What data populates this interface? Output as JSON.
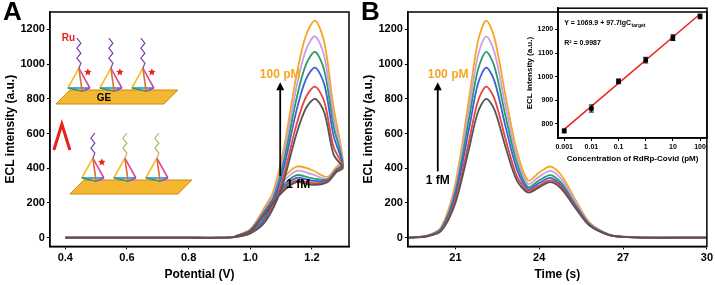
{
  "chart_data": [
    {
      "type": "line",
      "title": "A",
      "x_label": "Potential (V)",
      "y_label": "ECL intensity (a.u.)",
      "grid": false,
      "xlim": [
        0.35,
        1.32
      ],
      "xticks": [
        0.4,
        0.6,
        0.8,
        {
          "value": 1,
          "label": "1.0"
        },
        1.2
      ],
      "ylim": [
        -50,
        1300
      ],
      "yticks": [
        0,
        200,
        400,
        600,
        800,
        1000,
        1200
      ],
      "x": [
        0.4,
        0.6,
        0.8,
        0.9,
        0.95,
        1.0,
        1.05,
        1.1,
        1.15,
        1.18,
        1.21,
        1.24,
        1.27,
        1.3,
        1.28,
        1.25,
        1.2,
        1.15,
        1.1,
        1.05,
        1.0,
        0.95
      ],
      "series": [
        {
          "color": "#555555",
          "values": [
            0,
            0,
            0,
            0,
            4,
            24,
            96,
            280,
            600,
            744,
            800,
            720,
            480,
            400,
            380,
            320,
            304,
            320,
            256,
            144,
            38,
            6
          ]
        },
        {
          "color": "#e8453c",
          "values": [
            0,
            0,
            0,
            0,
            4,
            26,
            104,
            305,
            653,
            809,
            870,
            783,
            522,
            410,
            385,
            325,
            314,
            330,
            264,
            149,
            40,
            7
          ]
        },
        {
          "color": "#3a62d6",
          "values": [
            0,
            0,
            0,
            0,
            5,
            29,
            118,
            343,
            735,
            911,
            980,
            882,
            588,
            415,
            390,
            330,
            328,
            345,
            276,
            155,
            41,
            7
          ]
        },
        {
          "color": "#2f9a6a",
          "values": [
            0,
            0,
            0,
            0,
            5,
            32,
            128,
            375,
            803,
            995,
            1070,
            963,
            642,
            420,
            395,
            335,
            342,
            360,
            288,
            162,
            43,
            7
          ]
        },
        {
          "color": "#c9a0e6",
          "values": [
            0,
            0,
            0,
            0,
            6,
            35,
            139,
            406,
            870,
            1079,
            1160,
            1044,
            696,
            430,
            400,
            340,
            366,
            385,
            308,
            173,
            46,
            8
          ]
        },
        {
          "color": "#f5a623",
          "values": [
            0,
            0,
            0,
            0,
            6,
            38,
            150,
            438,
            938,
            1163,
            1250,
            1125,
            750,
            440,
            410,
            350,
            390,
            410,
            328,
            185,
            49,
            8
          ]
        }
      ],
      "annotations": [
        {
          "text": "100 pM",
          "color": "#f5a623"
        },
        {
          "text": "1 fM",
          "color": "#000000"
        },
        {
          "text": "Ru",
          "color": "#e8201a"
        },
        {
          "text": "GE",
          "color": "#000000"
        }
      ]
    },
    {
      "type": "line",
      "title": "B",
      "x_label": "Time (s)",
      "y_label": "ECL intensity (a.u.)",
      "grid": false,
      "xlim": [
        19.3,
        30
      ],
      "xticks": [
        21,
        24,
        27,
        30
      ],
      "ylim": [
        -50,
        1300
      ],
      "yticks": [
        0,
        200,
        400,
        600,
        800,
        1000,
        1200
      ],
      "x": [
        19.3,
        20,
        20.5,
        21,
        21.5,
        21.8,
        22.1,
        22.4,
        22.8,
        23.2,
        23.6,
        24.0,
        24.4,
        24.8,
        25.3,
        25.8,
        26.5,
        27,
        28,
        29,
        30
      ],
      "series": [
        {
          "color": "#555555",
          "values": [
            0,
            8,
            40,
            200,
            520,
            720,
            800,
            736,
            520,
            330,
            260,
            290,
            320,
            280,
            170,
            70,
            15,
            5,
            0,
            0,
            0
          ]
        },
        {
          "color": "#e8453c",
          "values": [
            0,
            9,
            44,
            218,
            566,
            783,
            870,
            800,
            566,
            355,
            270,
            300,
            330,
            290,
            175,
            72,
            15,
            5,
            0,
            0,
            0
          ]
        },
        {
          "color": "#3a62d6",
          "values": [
            0,
            10,
            49,
            245,
            637,
            882,
            980,
            902,
            637,
            395,
            280,
            315,
            345,
            300,
            183,
            75,
            16,
            5,
            0,
            0,
            0
          ]
        },
        {
          "color": "#2f9a6a",
          "values": [
            0,
            11,
            54,
            268,
            696,
            963,
            1070,
            984,
            696,
            430,
            292,
            330,
            360,
            314,
            190,
            78,
            17,
            5,
            0,
            0,
            0
          ]
        },
        {
          "color": "#c9a0e6",
          "values": [
            0,
            12,
            58,
            290,
            754,
            1044,
            1160,
            1067,
            754,
            465,
            310,
            352,
            385,
            336,
            204,
            84,
            18,
            6,
            0,
            0,
            0
          ]
        },
        {
          "color": "#f5a623",
          "values": [
            0,
            13,
            63,
            313,
            813,
            1125,
            1250,
            1150,
            813,
            500,
            330,
            375,
            410,
            358,
            217,
            89,
            19,
            6,
            0,
            0,
            0
          ]
        }
      ],
      "annotations": [
        {
          "text": "100 pM",
          "color": "#f5a623"
        },
        {
          "text": "1 fM",
          "color": "#000000"
        }
      ]
    },
    {
      "type": "scatter",
      "x_label": "Concentration of RdRp-Covid (pM)",
      "y_label": "ECL intensity (a.u.)",
      "grid": false,
      "log": "x",
      "xlim": [
        0.0006,
        180
      ],
      "xticks": [
        0.001,
        0.01,
        0.1,
        1,
        10,
        100
      ],
      "ylim": [
        740,
        1290
      ],
      "yticks": [
        800,
        900,
        1000,
        1100,
        1200
      ],
      "series": [
        {
          "type": "scatter",
          "marker": "square",
          "color": "#000000",
          "x": [
            0.001,
            0.01,
            0.1,
            1,
            10,
            100
          ],
          "values": [
            770,
            865,
            980,
            1070,
            1165,
            1255
          ],
          "errors": [
            8,
            15,
            10,
            12,
            12,
            10
          ]
        },
        {
          "type": "line",
          "line_style": "solid",
          "color": "#e8201a",
          "x": [
            0.001,
            100
          ],
          "values": [
            776.8,
            1265.3
          ]
        }
      ],
      "annotations": [
        {
          "text": "Y = 1069.9 + 97.7lgC",
          "subscript": "target",
          "color": "#000000"
        },
        {
          "text": "R² = 0.9987",
          "color": "#000000"
        }
      ]
    }
  ]
}
